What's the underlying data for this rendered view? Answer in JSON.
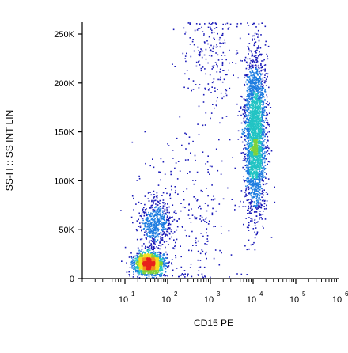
{
  "chart_data": {
    "type": "scatter",
    "title": "",
    "xlabel": "CD15 PE",
    "ylabel": "SS-H :: SS INT LIN",
    "x_scale": "log",
    "xlim": [
      1,
      1000000
    ],
    "ylim": [
      0,
      262144
    ],
    "x_ticks": [
      {
        "value": 10,
        "base": "10",
        "exp": "1"
      },
      {
        "value": 100,
        "base": "10",
        "exp": "2"
      },
      {
        "value": 1000,
        "base": "10",
        "exp": "3"
      },
      {
        "value": 10000,
        "base": "10",
        "exp": "4"
      },
      {
        "value": 100000,
        "base": "10",
        "exp": "5"
      },
      {
        "value": 1000000,
        "base": "10",
        "exp": "6"
      }
    ],
    "y_ticks": [
      {
        "value": 0,
        "label": "0"
      },
      {
        "value": 50000,
        "label": "50K"
      },
      {
        "value": 100000,
        "label": "100K"
      },
      {
        "value": 150000,
        "label": "150K"
      },
      {
        "value": 200000,
        "label": "200K"
      },
      {
        "value": 250000,
        "label": "250K"
      }
    ],
    "grid": false,
    "legend": "none",
    "density_colormap": [
      "#1a1ab8",
      "#1e7de0",
      "#22c4c4",
      "#7fd13b",
      "#f2e01e",
      "#f28c1e",
      "#e8201c"
    ],
    "populations": [
      {
        "x_center": 35,
        "x_spread_decades": 0.17,
        "y_center": 16000,
        "y_spread": 5500,
        "weight": 0.3
      },
      {
        "x_center": 50,
        "x_spread_decades": 0.18,
        "y_center": 58000,
        "y_spread": 11000,
        "weight": 0.1
      },
      {
        "x_center": 11000,
        "x_spread_decades": 0.12,
        "y_center": 148000,
        "y_spread": 40000,
        "weight": 0.5
      },
      {
        "x_center": 1000,
        "x_spread_decades": 0.35,
        "y_center": 225000,
        "y_spread": 28000,
        "weight": 0.04
      },
      {
        "x_center": 300,
        "x_spread_decades": 0.65,
        "y_center": 60000,
        "y_spread": 45000,
        "weight": 0.06
      }
    ]
  }
}
